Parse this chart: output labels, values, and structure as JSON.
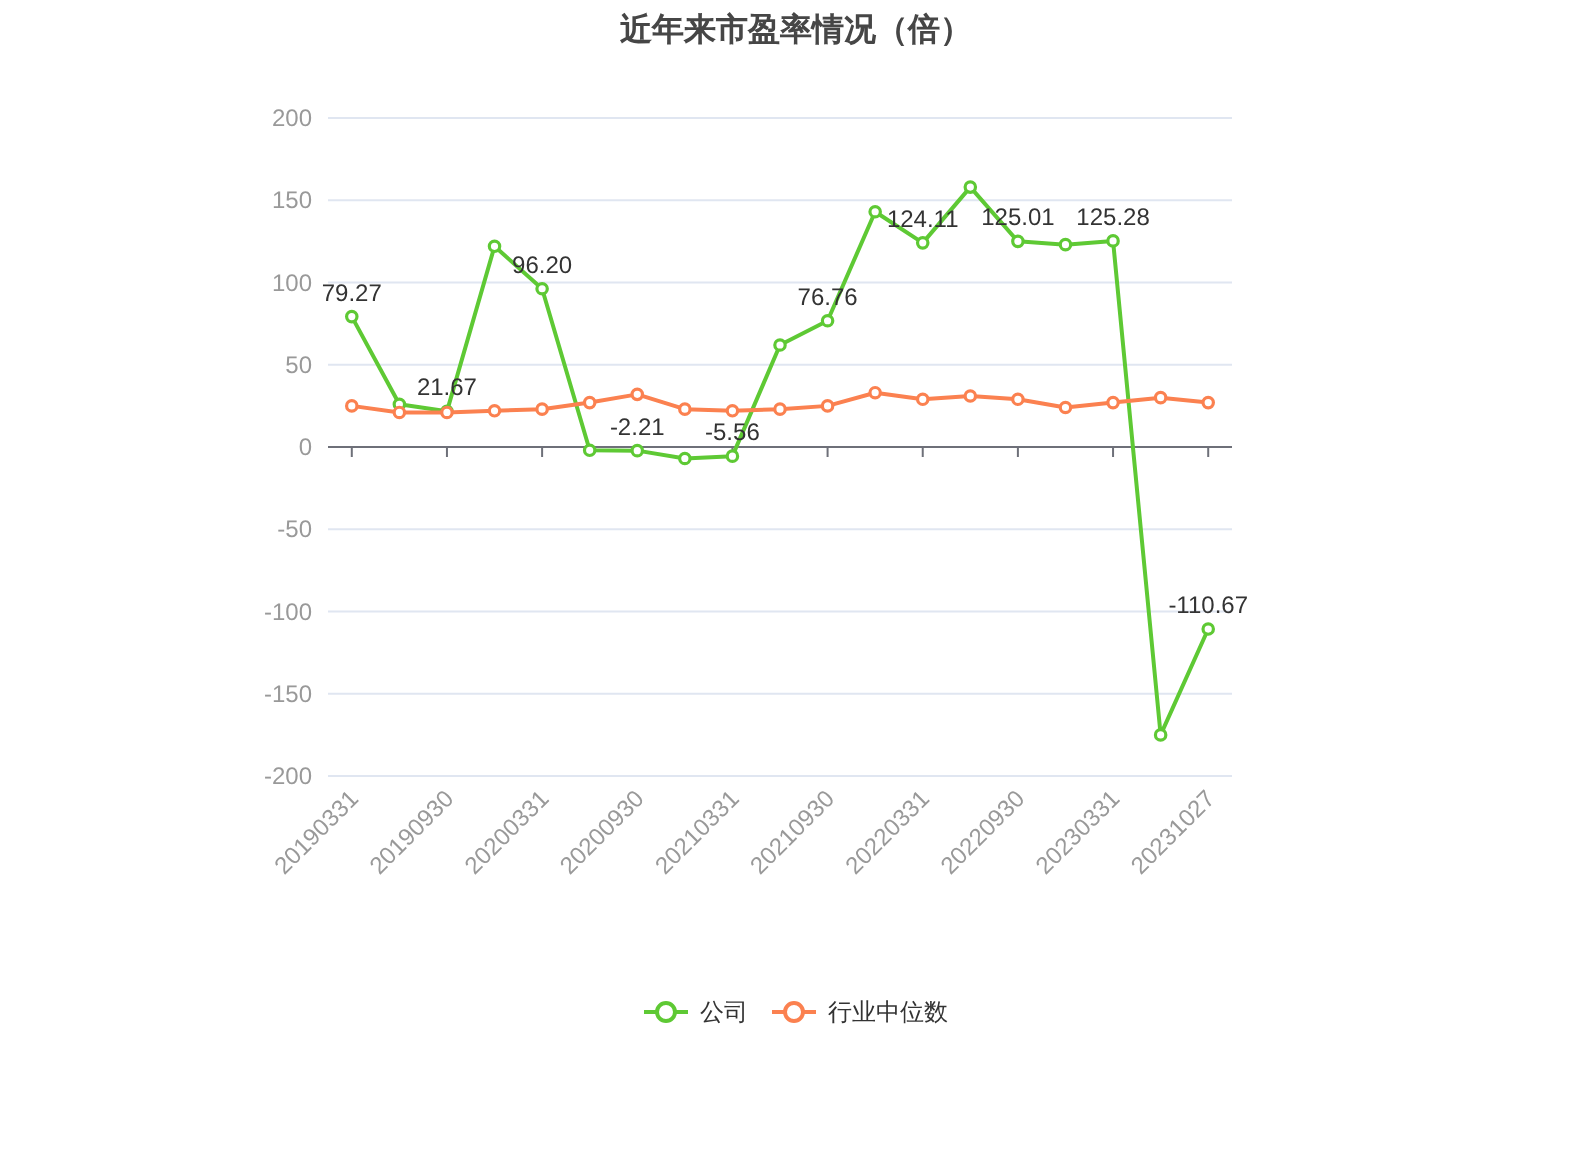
{
  "chart_data": {
    "type": "line",
    "title": "近年来市盈率情况（倍）",
    "categories": [
      "20190331",
      null,
      "20190930",
      null,
      "20200331",
      null,
      "20200930",
      null,
      "20210331",
      null,
      "20210930",
      null,
      "20220331",
      null,
      "20220930",
      null,
      "20230331",
      null,
      "20231027"
    ],
    "series": [
      {
        "name": "公司",
        "color": "#5ec934",
        "values": [
          79.27,
          26,
          21.67,
          122,
          96.2,
          -2,
          -2.21,
          -7,
          -5.56,
          62,
          76.76,
          143,
          124.11,
          158,
          125.01,
          123,
          125.28,
          -175,
          -110.67
        ],
        "value_labels": [
          "79.27",
          null,
          "21.67",
          null,
          "96.20",
          null,
          "-2.21",
          null,
          "-5.56",
          null,
          "76.76",
          null,
          "124.11",
          null,
          "125.01",
          null,
          "125.28",
          null,
          "-110.67"
        ]
      },
      {
        "name": "行业中位数",
        "color": "#fb8150",
        "values": [
          25,
          21,
          21,
          22,
          23,
          27,
          32,
          23,
          22,
          23,
          25,
          33,
          29,
          31,
          29,
          24,
          27,
          30,
          27
        ]
      }
    ],
    "ylim": [
      -200,
      200
    ],
    "yticks": [
      -200,
      -150,
      -100,
      -50,
      0,
      50,
      100,
      150,
      200
    ],
    "grid": "y",
    "legend": "bottom",
    "marker": "circle"
  }
}
